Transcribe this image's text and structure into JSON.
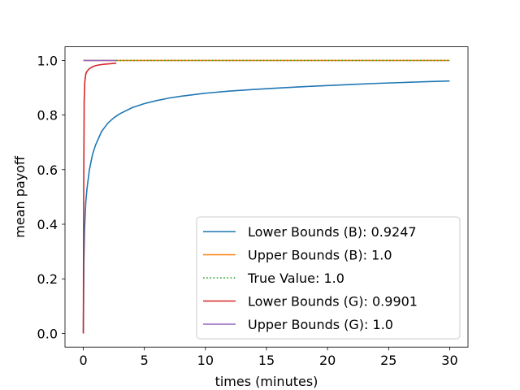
{
  "chart_data": {
    "type": "line",
    "xlabel": "times (minutes)",
    "ylabel": "mean payoff",
    "xlim": [
      -1.5,
      31.5
    ],
    "ylim": [
      -0.05,
      1.05
    ],
    "xticks": [
      0,
      5,
      10,
      15,
      20,
      25,
      30
    ],
    "yticks": [
      0.0,
      0.2,
      0.4,
      0.6,
      0.8,
      1.0
    ],
    "xtick_labels": [
      "0",
      "5",
      "10",
      "15",
      "20",
      "25",
      "30"
    ],
    "ytick_labels": [
      "0.0",
      "0.2",
      "0.4",
      "0.6",
      "0.8",
      "1.0"
    ],
    "grid": false,
    "legend_position": "bottom-right",
    "series": [
      {
        "name": "Lower Bounds (B): 0.9247",
        "color": "#1f77b4",
        "style": "solid",
        "x": [
          0,
          0.05,
          0.1,
          0.2,
          0.3,
          0.5,
          0.75,
          1,
          1.5,
          2,
          2.5,
          3,
          4,
          5,
          6,
          7,
          8,
          10,
          12,
          14,
          16,
          18,
          20,
          22,
          24,
          26,
          28,
          30
        ],
        "y": [
          0.0,
          0.27,
          0.38,
          0.48,
          0.53,
          0.6,
          0.655,
          0.69,
          0.74,
          0.77,
          0.79,
          0.805,
          0.827,
          0.842,
          0.853,
          0.862,
          0.869,
          0.88,
          0.888,
          0.894,
          0.899,
          0.904,
          0.908,
          0.912,
          0.916,
          0.919,
          0.922,
          0.9247
        ]
      },
      {
        "name": "Upper Bounds (B): 1.0",
        "color": "#ff7f0e",
        "style": "solid",
        "x": [
          0,
          30
        ],
        "y": [
          1.0,
          1.0
        ]
      },
      {
        "name": "True Value: 1.0",
        "color": "#2ca02c",
        "style": "dotted",
        "x": [
          2.7,
          30
        ],
        "y": [
          1.0,
          1.0
        ]
      },
      {
        "name": "Lower Bounds (G): 0.9901",
        "color": "#d62728",
        "style": "solid",
        "x": [
          0,
          0.03,
          0.07,
          0.12,
          0.2,
          0.3,
          0.5,
          0.8,
          1.2,
          1.7,
          2.2,
          2.7
        ],
        "y": [
          0.0,
          0.5,
          0.85,
          0.92,
          0.95,
          0.96,
          0.97,
          0.978,
          0.983,
          0.986,
          0.988,
          0.9901
        ]
      },
      {
        "name": "Upper Bounds (G): 1.0",
        "color": "#9467bd",
        "style": "solid",
        "x": [
          0,
          2.7
        ],
        "y": [
          1.0,
          1.0
        ]
      }
    ]
  }
}
